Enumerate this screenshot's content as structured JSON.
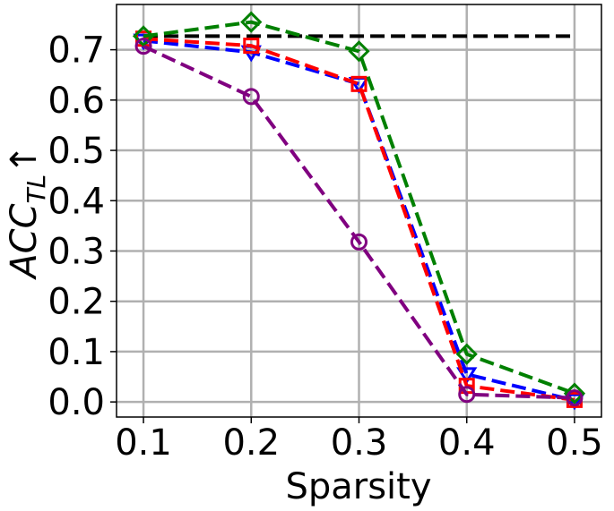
{
  "chart_data": {
    "type": "line",
    "x": [
      0.1,
      0.2,
      0.3,
      0.4,
      0.5
    ],
    "x_ticks": [
      "0.1",
      "0.2",
      "0.3",
      "0.4",
      "0.5"
    ],
    "y_ticks": [
      "0.0",
      "0.1",
      "0.2",
      "0.3",
      "0.4",
      "0.5",
      "0.6",
      "0.7"
    ],
    "xlabel": "Sparsity",
    "ylabel_main": "ACC",
    "ylabel_sub": "TL",
    "ylabel_arrow": "↑",
    "xlim": [
      0.075,
      0.525
    ],
    "ylim": [
      -0.03,
      0.79
    ],
    "grid": true,
    "legend": "none",
    "baseline": {
      "value": 0.727,
      "color": "#000000",
      "style": "dashed"
    },
    "series": [
      {
        "marker": "triangle-down",
        "color": "#0000ff",
        "values": [
          0.718,
          0.695,
          0.632,
          0.055,
          0.003
        ]
      },
      {
        "marker": "square",
        "color": "#ff0000",
        "values": [
          0.722,
          0.708,
          0.632,
          0.032,
          0.004
        ]
      },
      {
        "marker": "diamond",
        "color": "#008000",
        "values": [
          0.727,
          0.755,
          0.697,
          0.095,
          0.017
        ]
      },
      {
        "marker": "circle",
        "color": "#800080",
        "values": [
          0.707,
          0.607,
          0.318,
          0.015,
          0.008
        ]
      }
    ]
  }
}
